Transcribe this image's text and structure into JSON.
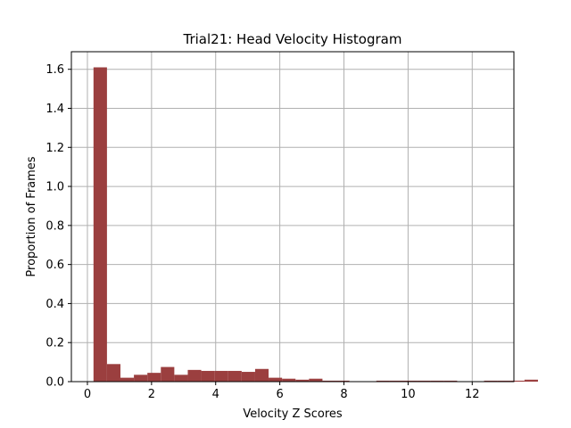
{
  "chart_data": {
    "type": "bar",
    "title": "Trial21: Head Velocity Histogram",
    "xlabel": "Velocity Z Scores",
    "ylabel": "Proportion of Frames",
    "xlim": [
      -0.5,
      13.3
    ],
    "ylim": [
      0,
      1.69
    ],
    "xticks": [
      0,
      2,
      4,
      6,
      8,
      10,
      12
    ],
    "yticks": [
      0.0,
      0.2,
      0.4,
      0.6,
      0.8,
      1.0,
      1.2,
      1.4,
      1.6
    ],
    "xtick_labels": [
      "0",
      "2",
      "4",
      "6",
      "8",
      "10",
      "12"
    ],
    "ytick_labels": [
      "0.0",
      "0.2",
      "0.4",
      "0.6",
      "0.8",
      "1.0",
      "1.2",
      "1.4",
      "1.6"
    ],
    "grid": true,
    "color": "#9b3f3f",
    "bin_start": 0.19,
    "bin_width": 0.42,
    "values": [
      1.61,
      0.09,
      0.02,
      0.035,
      0.045,
      0.075,
      0.035,
      0.06,
      0.055,
      0.055,
      0.055,
      0.05,
      0.065,
      0.02,
      0.015,
      0.01,
      0.015,
      0.005,
      0.005,
      0.0,
      0.0,
      0.005,
      0.005,
      0.005,
      0.005,
      0.005,
      0.005,
      0.0,
      0.0,
      0.005,
      0.005,
      0.005,
      0.01
    ]
  }
}
